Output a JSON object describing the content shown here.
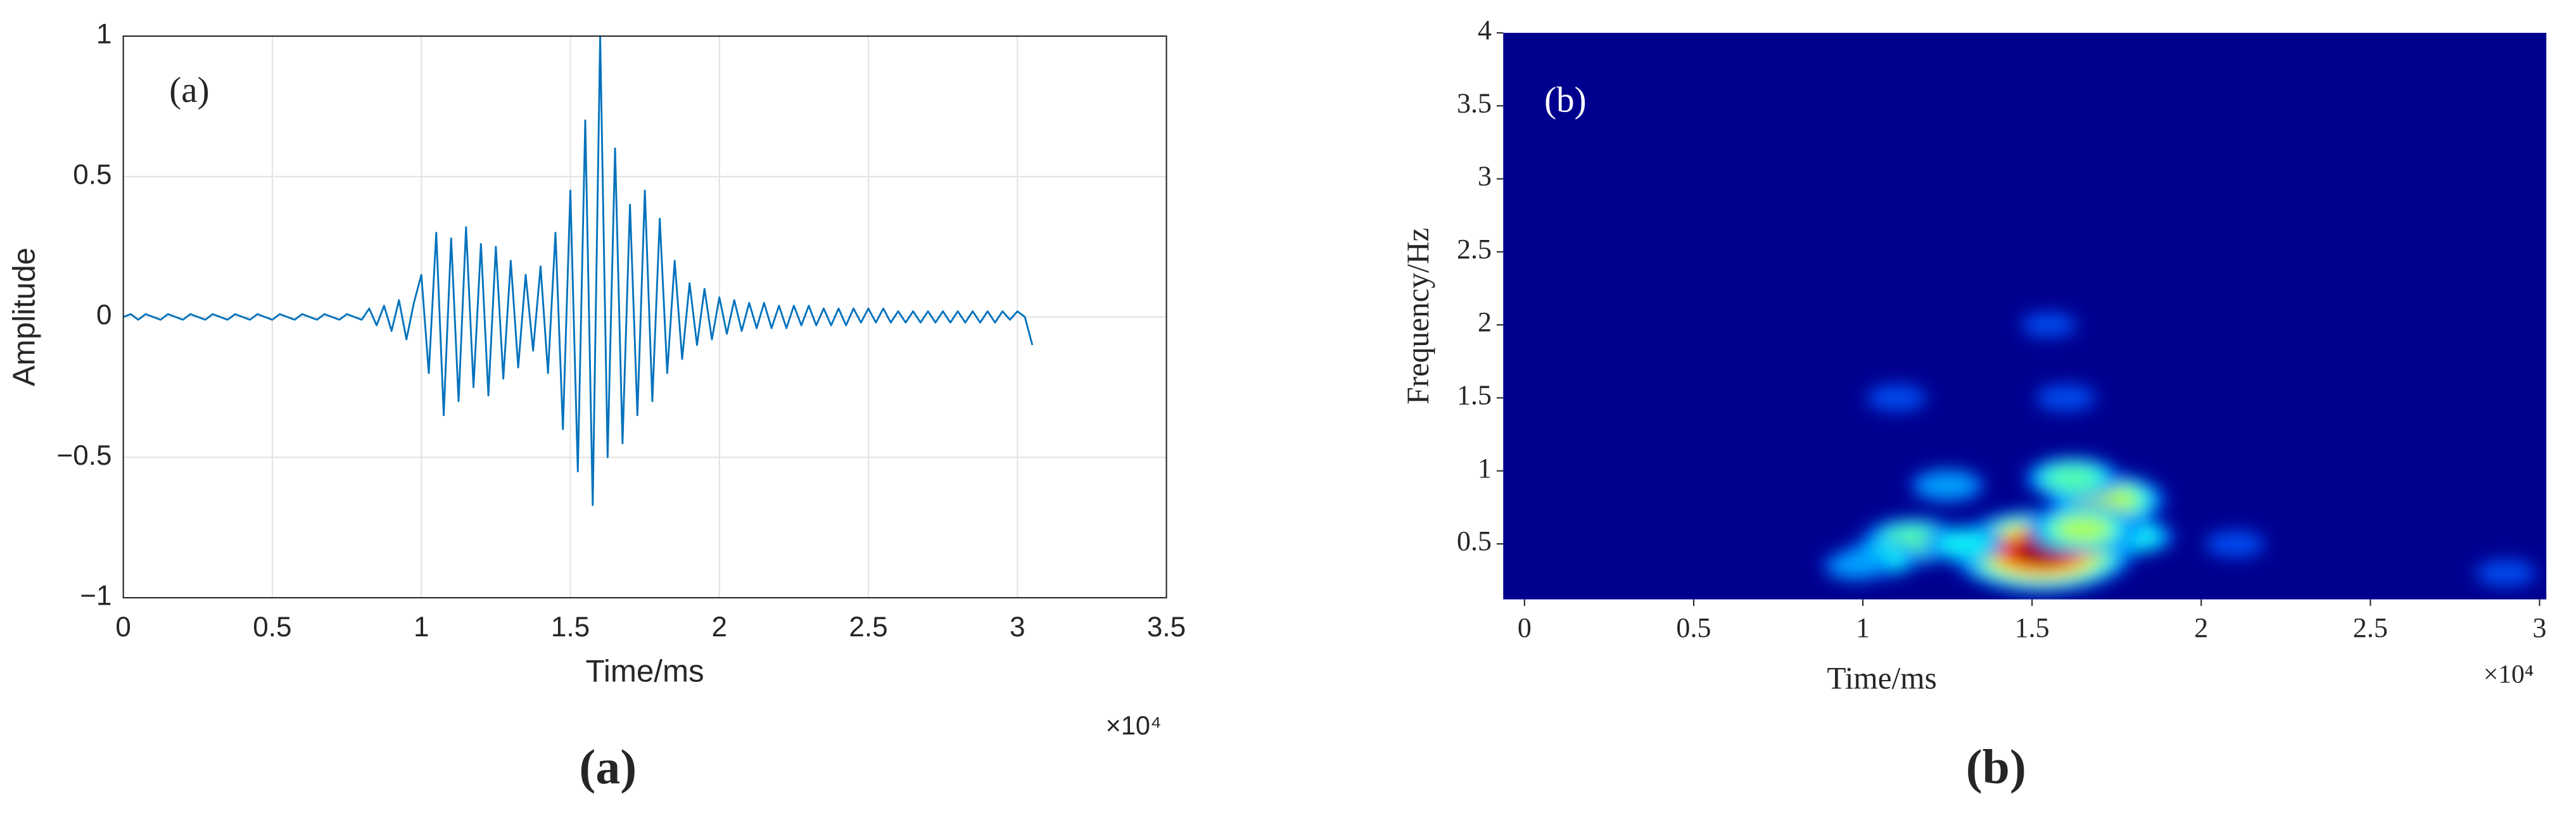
{
  "chart_data": [
    {
      "type": "line",
      "color": "#0072bd",
      "annotation": "(a)",
      "x_label": "Time/ms",
      "y_label": "Amplitude",
      "x_multiplier": "×10⁴",
      "caption": "(a)",
      "grid": true,
      "xlim": [
        0,
        35000
      ],
      "xticks": [
        0,
        {
          "value": 5000,
          "label": "0.5"
        },
        {
          "value": 10000,
          "label": "1"
        },
        {
          "value": 15000,
          "label": "1.5"
        },
        {
          "value": 20000,
          "label": "2"
        },
        {
          "value": 25000,
          "label": "2.5"
        },
        {
          "value": 30000,
          "label": "3"
        },
        {
          "value": 35000,
          "label": "3.5"
        }
      ],
      "ylim": [
        -1,
        1
      ],
      "yticks": [
        {
          "value": -1,
          "label": "−1"
        },
        {
          "value": -0.5,
          "label": "−0.5"
        },
        0,
        0.5,
        1
      ],
      "x": [
        0,
        250,
        500,
        750,
        1000,
        1250,
        1500,
        1750,
        2000,
        2250,
        2500,
        2750,
        3000,
        3250,
        3500,
        3750,
        4000,
        4250,
        4500,
        4750,
        5000,
        5250,
        5500,
        5750,
        6000,
        6250,
        6500,
        6750,
        7000,
        7250,
        7500,
        7750,
        8000,
        8250,
        8500,
        8750,
        9000,
        9250,
        9500,
        9750,
        10000,
        10250,
        10500,
        10750,
        11000,
        11250,
        11500,
        11750,
        12000,
        12250,
        12500,
        12750,
        13000,
        13250,
        13500,
        13750,
        14000,
        14250,
        14500,
        14750,
        15000,
        15250,
        15500,
        15750,
        16000,
        16250,
        16500,
        16750,
        17000,
        17250,
        17500,
        17750,
        18000,
        18250,
        18500,
        18750,
        19000,
        19250,
        19500,
        19750,
        20000,
        20250,
        20500,
        20750,
        21000,
        21250,
        21500,
        21750,
        22000,
        22250,
        22500,
        22750,
        23000,
        23250,
        23500,
        23750,
        24000,
        24250,
        24500,
        24750,
        25000,
        25250,
        25500,
        25750,
        26000,
        26250,
        26500,
        26750,
        27000,
        27250,
        27500,
        27750,
        28000,
        28250,
        28500,
        28750,
        29000,
        29250,
        29500,
        29750,
        30000,
        30250,
        30500
      ],
      "values": [
        0,
        0.01,
        -0.01,
        0.01,
        0,
        -0.01,
        0.01,
        0,
        -0.01,
        0.01,
        0,
        -0.01,
        0.01,
        0,
        -0.01,
        0.01,
        0,
        -0.01,
        0.01,
        0,
        -0.01,
        0.01,
        0,
        -0.01,
        0.01,
        0,
        -0.01,
        0.01,
        0,
        -0.01,
        0.01,
        0,
        -0.01,
        0.03,
        -0.03,
        0.04,
        -0.05,
        0.06,
        -0.08,
        0.05,
        0.15,
        -0.2,
        0.3,
        -0.35,
        0.28,
        -0.3,
        0.32,
        -0.25,
        0.26,
        -0.28,
        0.25,
        -0.22,
        0.2,
        -0.18,
        0.15,
        -0.12,
        0.18,
        -0.2,
        0.3,
        -0.4,
        0.45,
        -0.55,
        0.7,
        -0.67,
        1,
        -0.5,
        0.6,
        -0.45,
        0.4,
        -0.35,
        0.45,
        -0.3,
        0.35,
        -0.2,
        0.2,
        -0.15,
        0.12,
        -0.1,
        0.1,
        -0.08,
        0.07,
        -0.06,
        0.06,
        -0.05,
        0.05,
        -0.04,
        0.05,
        -0.04,
        0.04,
        -0.04,
        0.04,
        -0.03,
        0.04,
        -0.03,
        0.03,
        -0.03,
        0.03,
        -0.03,
        0.03,
        -0.02,
        0.03,
        -0.02,
        0.03,
        -0.02,
        0.02,
        -0.02,
        0.02,
        -0.02,
        0.02,
        -0.02,
        0.02,
        -0.02,
        0.02,
        -0.02,
        0.02,
        -0.02,
        0.02,
        -0.02,
        0.02,
        -0.01,
        0.02,
        0,
        -0.1
      ]
    },
    {
      "type": "heatmap",
      "background": "#00008f",
      "annotation": "(b)",
      "x_label": "Time/ms",
      "y_label": "Frequency/Hz",
      "x_multiplier": "×10⁴",
      "caption": "(b)",
      "grid": false,
      "xlim": [
        -630,
        30200
      ],
      "xticks": [
        0,
        {
          "value": 5000,
          "label": "0.5"
        },
        {
          "value": 10000,
          "label": "1"
        },
        {
          "value": 15000,
          "label": "1.5"
        },
        {
          "value": 20000,
          "label": "2"
        },
        {
          "value": 25000,
          "label": "2.5"
        },
        {
          "value": 30000,
          "label": "3"
        }
      ],
      "ylim": [
        0.12,
        4
      ],
      "yticks": [
        0.5,
        1,
        1.5,
        2,
        2.5,
        3,
        3.5,
        4
      ],
      "spots": [
        {
          "x": 11500,
          "y": 0.52,
          "intensity": 0.45
        },
        {
          "x": 14800,
          "y": 0.4,
          "intensity": 0.6
        },
        {
          "x": 15300,
          "y": 0.45,
          "intensity": 1.0
        },
        {
          "x": 17200,
          "y": 0.8,
          "intensity": 0.55
        },
        {
          "x": 16200,
          "y": 0.95,
          "intensity": 0.4
        },
        {
          "x": 12500,
          "y": 0.9,
          "intensity": 0.25
        },
        {
          "x": 10500,
          "y": 0.4,
          "intensity": 0.3
        },
        {
          "x": 18000,
          "y": 0.55,
          "intensity": 0.3
        },
        {
          "x": 16500,
          "y": 0.6,
          "intensity": 0.5
        },
        {
          "x": 13000,
          "y": 0.5,
          "intensity": 0.3
        },
        {
          "x": 9800,
          "y": 0.35,
          "intensity": 0.2
        },
        {
          "x": 11000,
          "y": 1.5,
          "intensity": 0.15
        },
        {
          "x": 16000,
          "y": 1.5,
          "intensity": 0.15
        },
        {
          "x": 21000,
          "y": 0.5,
          "intensity": 0.15
        },
        {
          "x": 29000,
          "y": 0.3,
          "intensity": 0.15
        },
        {
          "x": 15500,
          "y": 2.0,
          "intensity": 0.12
        }
      ]
    }
  ]
}
